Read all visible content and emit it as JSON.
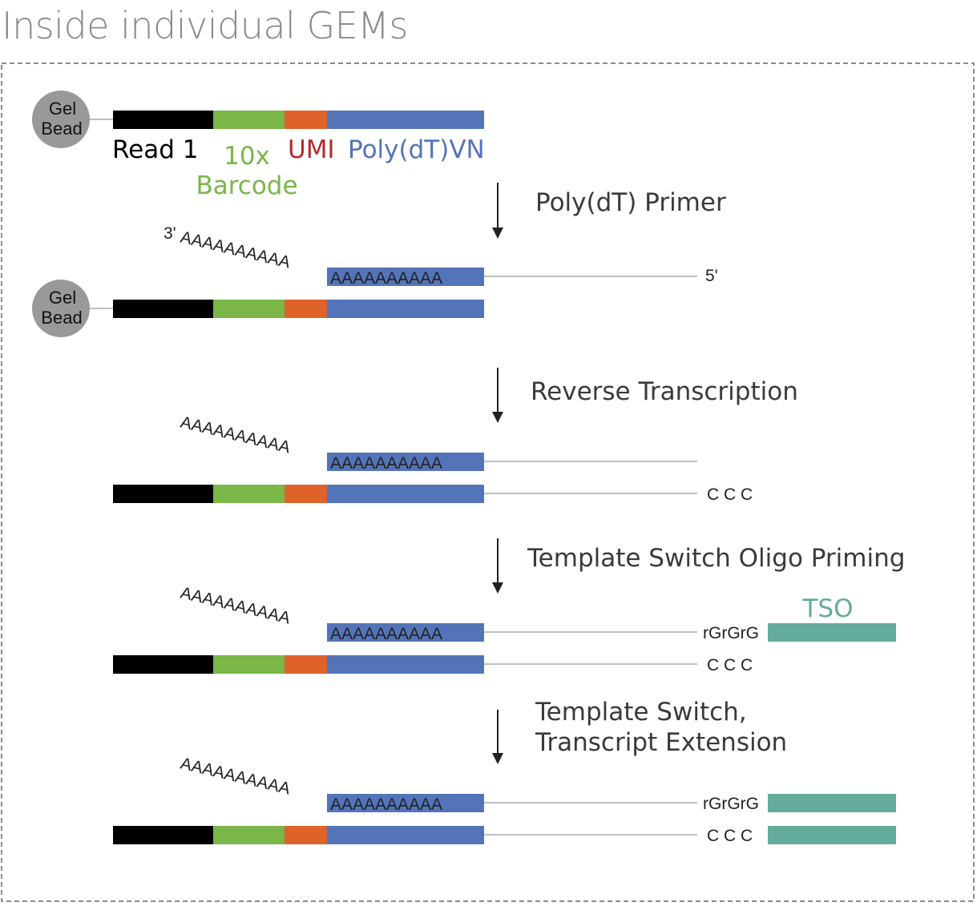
{
  "title": "Inside individual GEMs",
  "colors": {
    "read1": "#000000",
    "barcode": "#7ab648",
    "umi": "#e0622b",
    "polydt": "#5474b9",
    "tso": "#63ab9b",
    "bead": "#999999",
    "line": "#bfbfbf",
    "umi_label": "#b22a2a"
  },
  "bead": {
    "line1": "Gel",
    "line2": "Bead"
  },
  "legend": {
    "read1": "Read 1",
    "barcode_line1": "10x",
    "barcode_line2": "Barcode",
    "umi": "UMI",
    "polydt": "Poly(dT)VN"
  },
  "steps": {
    "s1": "Poly(dT) Primer",
    "s2": "Reverse Transcription",
    "s3": "Template Switch Oligo Priming",
    "s4_line1": "Template Switch,",
    "s4_line2": "Transcript Extension"
  },
  "sequences": {
    "polya_tail": "AAAAAAAAAA",
    "polyt_block": "AAAAAAAAAA",
    "three_prime": "3'",
    "five_prime": "5'",
    "ccc": "C C C",
    "rgrgrg": "rGrGrG",
    "tso_label": "TSO"
  }
}
